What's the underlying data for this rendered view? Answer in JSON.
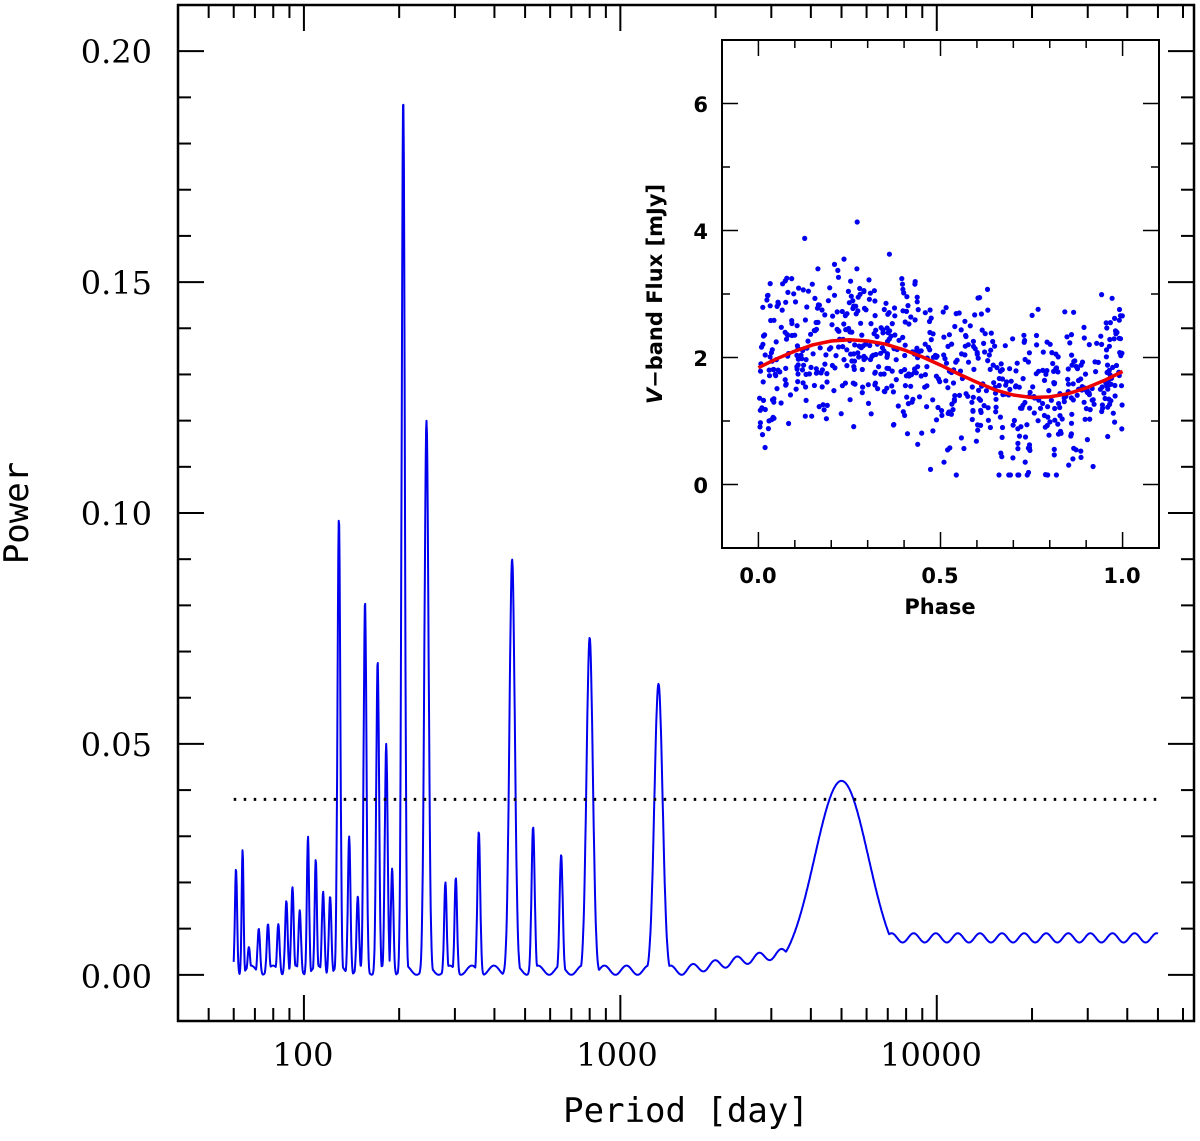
{
  "chart_data": [
    {
      "type": "line",
      "title": "",
      "xlabel": "Period [day]",
      "ylabel": "Power",
      "xscale": "log",
      "xlim": [
        40,
        65000
      ],
      "ylim": [
        -0.01,
        0.21
      ],
      "x_ticks": [
        100,
        1000,
        10000
      ],
      "x_tick_labels": [
        "100",
        "1000",
        "10000"
      ],
      "y_ticks": [
        0.0,
        0.05,
        0.1,
        0.15,
        0.2
      ],
      "y_tick_labels": [
        "0.00",
        "0.05",
        "0.10",
        "0.15",
        "0.20"
      ],
      "grid": false,
      "series": [
        {
          "name": "periodogram",
          "color": "#0000ee",
          "peaks": [
            {
              "period": 61,
              "power": 0.023,
              "width": 0.0035
            },
            {
              "period": 64,
              "power": 0.027,
              "width": 0.003
            },
            {
              "period": 67,
              "power": 0.006,
              "width": 0.004
            },
            {
              "period": 72,
              "power": 0.01,
              "width": 0.004
            },
            {
              "period": 77,
              "power": 0.011,
              "width": 0.004
            },
            {
              "period": 83,
              "power": 0.011,
              "width": 0.004
            },
            {
              "period": 88,
              "power": 0.016,
              "width": 0.004
            },
            {
              "period": 92,
              "power": 0.019,
              "width": 0.004
            },
            {
              "period": 97,
              "power": 0.014,
              "width": 0.004
            },
            {
              "period": 103,
              "power": 0.03,
              "width": 0.0035
            },
            {
              "period": 109,
              "power": 0.025,
              "width": 0.0035
            },
            {
              "period": 115,
              "power": 0.018,
              "width": 0.004
            },
            {
              "period": 121,
              "power": 0.017,
              "width": 0.004
            },
            {
              "period": 129,
              "power": 0.099,
              "width": 0.0045
            },
            {
              "period": 139,
              "power": 0.03,
              "width": 0.004
            },
            {
              "period": 148,
              "power": 0.017,
              "width": 0.004
            },
            {
              "period": 156,
              "power": 0.081,
              "width": 0.0045
            },
            {
              "period": 171,
              "power": 0.068,
              "width": 0.0045
            },
            {
              "period": 182,
              "power": 0.05,
              "width": 0.0045
            },
            {
              "period": 190,
              "power": 0.023,
              "width": 0.004
            },
            {
              "period": 206,
              "power": 0.19,
              "width": 0.005
            },
            {
              "period": 244,
              "power": 0.12,
              "width": 0.0065
            },
            {
              "period": 280,
              "power": 0.02,
              "width": 0.004
            },
            {
              "period": 302,
              "power": 0.021,
              "width": 0.004
            },
            {
              "period": 357,
              "power": 0.031,
              "width": 0.0045
            },
            {
              "period": 455,
              "power": 0.09,
              "width": 0.0085
            },
            {
              "period": 530,
              "power": 0.032,
              "width": 0.005
            },
            {
              "period": 650,
              "power": 0.026,
              "width": 0.005
            },
            {
              "period": 800,
              "power": 0.073,
              "width": 0.01
            },
            {
              "period": 1320,
              "power": 0.063,
              "width": 0.013
            },
            {
              "period": 5000,
              "power": 0.042,
              "width": 0.085
            }
          ],
          "baseline": 0.007
        }
      ],
      "annotations": [
        {
          "type": "hline",
          "style": "dotted",
          "y": 0.038,
          "x_from": 60,
          "x_to": 50000
        }
      ]
    },
    {
      "type": "scatter",
      "title": "",
      "xlabel": "Phase",
      "ylabel_italic": "V",
      "ylabel": "−band Flux [mJy]",
      "xlim": [
        -0.1,
        1.1
      ],
      "ylim": [
        -1,
        7
      ],
      "x_ticks": [
        0.0,
        0.5,
        1.0
      ],
      "x_tick_labels": [
        "0.0",
        "0.5",
        "1.0"
      ],
      "y_ticks": [
        0,
        2,
        4,
        6
      ],
      "y_tick_labels": [
        "0",
        "2",
        "4",
        "6"
      ],
      "grid": false,
      "points_color": "#0000ee",
      "points_count": 720,
      "points_model": {
        "mean": 1.82,
        "amplitude": 0.46,
        "spread": 0.62,
        "phase_range": [
          0,
          1
        ]
      },
      "series": [
        {
          "name": "sinusoid fit",
          "type": "line",
          "color": "#ee0000",
          "x": [
            0.0,
            0.05,
            0.1,
            0.15,
            0.2,
            0.25,
            0.3,
            0.35,
            0.4,
            0.45,
            0.5,
            0.55,
            0.6,
            0.65,
            0.7,
            0.75,
            0.8,
            0.85,
            0.9,
            0.95,
            1.0
          ],
          "y": [
            1.84,
            1.98,
            2.1,
            2.2,
            2.26,
            2.28,
            2.26,
            2.21,
            2.12,
            2.01,
            1.88,
            1.74,
            1.61,
            1.49,
            1.41,
            1.37,
            1.38,
            1.43,
            1.52,
            1.64,
            1.78
          ]
        }
      ]
    }
  ]
}
